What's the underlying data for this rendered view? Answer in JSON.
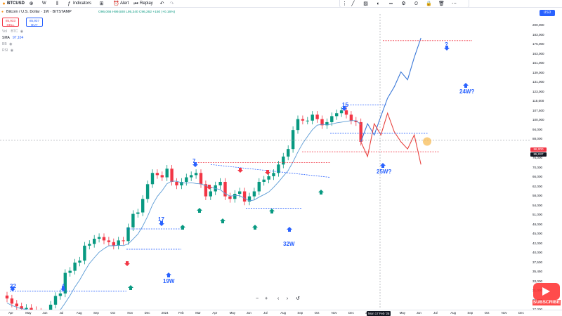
{
  "toolbar": {
    "symbol": "BTCUSD",
    "interval": "W",
    "indicators_label": "Indicators",
    "alert_label": "Alert",
    "replay_label": "Replay"
  },
  "legend": {
    "title": "Bitcoin / U.S. Dollar · 1W · BITSTAMP",
    "ohlc": "O96,066 H99,508 L95,340 C96,262 +150 (+0.16%)",
    "sell_price": "85,933",
    "sell_label": "SELL",
    "buy_price": "85,937",
    "buy_label": "BUY",
    "row1_name": "Vol",
    "row1_value": "BTC",
    "row2_name": "SMA",
    "row2_value": "97,104",
    "row3_name": "BB",
    "row4_name": "RSI"
  },
  "price_axis": {
    "currency_button": "USD",
    "labels": [
      "200,000",
      "183,000",
      "175,000",
      "163,000",
      "151,000",
      "139,000",
      "131,000",
      "123,000",
      "115,000",
      "107,500",
      "100,000",
      "94,000",
      "88,000",
      "82,000",
      "76,000",
      "70,000",
      "66,000",
      "62,000",
      "58,000",
      "54,000",
      "51,000",
      "48,000",
      "45,000",
      "42,000",
      "40,000",
      "37,500",
      "35,450",
      "33,000",
      "31,000",
      "29,000",
      "27,000"
    ],
    "tag_red": "86,000",
    "tag_dark": "85,037"
  },
  "time_axis": {
    "labels": [
      "Apr",
      "May",
      "Jun",
      "Jul",
      "Aug",
      "Sep",
      "Oct",
      "Nov",
      "Dec",
      "2024",
      "Feb",
      "Mar",
      "Apr",
      "May",
      "Jun",
      "Jul",
      "Aug",
      "Sep",
      "Oct",
      "Nov",
      "Dec",
      "2025",
      "Apr",
      "May",
      "Jun",
      "Jul",
      "Aug",
      "Sep",
      "Oct",
      "Nov",
      "Dec"
    ],
    "highlight": "Mon 17 Feb '25"
  },
  "annotations": {
    "a22": "22",
    "a4": "4",
    "a17": "17",
    "a19w": "19W",
    "a7": "7",
    "a32w": "32W",
    "a15": "15",
    "a25w": "25W?",
    "q": "?",
    "a24w": "24W?"
  },
  "overlay": {
    "brand": "SUBSCRIBE"
  },
  "colors": {
    "up": "#089981",
    "down": "#f23645",
    "accent": "#2962ff",
    "sma": "#5b9bd5"
  },
  "chart_data": {
    "type": "candlestick",
    "title": "Bitcoin / U.S. Dollar · 1W · BITSTAMP",
    "xlabel": "",
    "ylabel": "",
    "ylim": [
      27000,
      200000
    ],
    "scale": "log",
    "candles_close_approx": [
      29000,
      28000,
      27500,
      27000,
      27200,
      26800,
      26500,
      26000,
      26200,
      27800,
      29500,
      30000,
      34500,
      35000,
      37000,
      37500,
      41500,
      42000,
      43500,
      44000,
      43000,
      42500,
      41500,
      43000,
      42800,
      47000,
      51500,
      52000,
      57000,
      63000,
      68000,
      67000,
      66000,
      70000,
      64000,
      62500,
      64000,
      66000,
      67000,
      68000,
      63000,
      58000,
      60000,
      62500,
      64000,
      58000,
      57000,
      59000,
      60000,
      56000,
      58000,
      60000,
      64000,
      65000,
      66500,
      68000,
      72000,
      76000,
      80000,
      91000,
      98000,
      97000,
      97000,
      101000,
      98000,
      94000,
      96000,
      100000,
      102000,
      104000,
      101000,
      97000,
      96000,
      84000
    ],
    "sma_note": "blue moving average line",
    "projection_up": [
      84000,
      95000,
      88000,
      100000,
      113000,
      122000,
      135000,
      128000,
      149000,
      170000
    ],
    "projection_down": [
      84000,
      76000,
      95000,
      88000,
      102000,
      90000,
      84000,
      80000,
      88000,
      72000
    ]
  }
}
